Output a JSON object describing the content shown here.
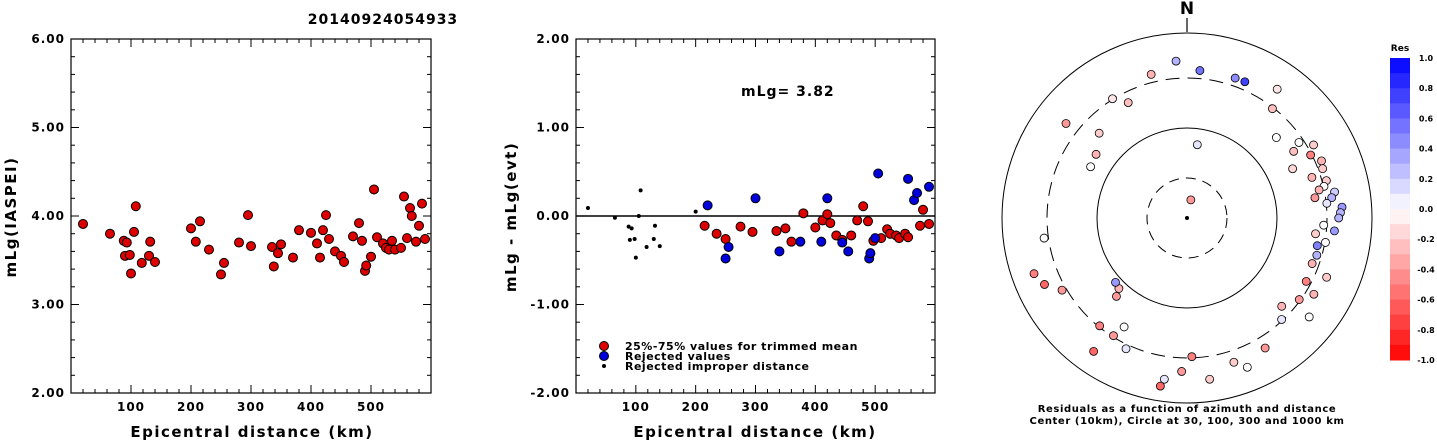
{
  "title": "20140924054933",
  "chart_data": [
    {
      "type": "scatter",
      "ylabel": "mLg(IASPEI)",
      "xlabel": "Epicentral distance (km)",
      "xlim": [
        0,
        600
      ],
      "ylim": [
        2.0,
        6.0
      ],
      "xticks": [
        "100",
        "200",
        "300",
        "400",
        "500"
      ],
      "yticks": [
        "2.00",
        "3.00",
        "4.00",
        "5.00",
        "6.00"
      ],
      "series": [
        {
          "color": "#dd0000",
          "points": [
            [
              20,
              3.91
            ],
            [
              65,
              3.8
            ],
            [
              88,
              3.72
            ],
            [
              90,
              3.55
            ],
            [
              93,
              3.7
            ],
            [
              98,
              3.56
            ],
            [
              100,
              3.35
            ],
            [
              105,
              3.82
            ],
            [
              108,
              4.11
            ],
            [
              118,
              3.47
            ],
            [
              130,
              3.55
            ],
            [
              132,
              3.71
            ],
            [
              140,
              3.48
            ],
            [
              200,
              3.86
            ],
            [
              208,
              3.71
            ],
            [
              215,
              3.94
            ],
            [
              230,
              3.62
            ],
            [
              250,
              3.34
            ],
            [
              255,
              3.47
            ],
            [
              280,
              3.7
            ],
            [
              295,
              4.01
            ],
            [
              300,
              3.66
            ],
            [
              335,
              3.65
            ],
            [
              338,
              3.43
            ],
            [
              345,
              3.58
            ],
            [
              350,
              3.68
            ],
            [
              370,
              3.53
            ],
            [
              380,
              3.84
            ],
            [
              400,
              3.81
            ],
            [
              410,
              3.69
            ],
            [
              415,
              3.53
            ],
            [
              420,
              3.84
            ],
            [
              425,
              4.01
            ],
            [
              430,
              3.74
            ],
            [
              440,
              3.6
            ],
            [
              450,
              3.55
            ],
            [
              455,
              3.48
            ],
            [
              470,
              3.77
            ],
            [
              480,
              3.92
            ],
            [
              485,
              3.72
            ],
            [
              490,
              3.38
            ],
            [
              492,
              3.44
            ],
            [
              500,
              3.54
            ],
            [
              505,
              4.3
            ],
            [
              510,
              3.76
            ],
            [
              520,
              3.69
            ],
            [
              525,
              3.64
            ],
            [
              530,
              3.62
            ],
            [
              535,
              3.72
            ],
            [
              540,
              3.62
            ],
            [
              550,
              3.64
            ],
            [
              555,
              4.22
            ],
            [
              560,
              3.75
            ],
            [
              565,
              4.09
            ],
            [
              568,
              4.0
            ],
            [
              575,
              3.71
            ],
            [
              580,
              3.89
            ],
            [
              585,
              4.14
            ],
            [
              590,
              3.74
            ]
          ]
        }
      ]
    },
    {
      "type": "scatter",
      "ylabel": "mLg - mLg(evt)",
      "xlabel": "Epicentral distance (km)",
      "annotation": "mLg= 3.82",
      "xlim": [
        0,
        600
      ],
      "ylim": [
        -2.0,
        2.0
      ],
      "xticks": [
        "100",
        "200",
        "300",
        "400",
        "500"
      ],
      "yticks": [
        "-2.00",
        "-1.00",
        "0.00",
        "1.00",
        "2.00"
      ],
      "reference_line": 0.0,
      "series": [
        {
          "name": "25%-75% values for trimmed mean",
          "color": "#dd0000",
          "marker": "circle",
          "points": [
            [
              215,
              -0.11
            ],
            [
              235,
              -0.2
            ],
            [
              250,
              -0.26
            ],
            [
              275,
              -0.12
            ],
            [
              295,
              -0.18
            ],
            [
              335,
              -0.17
            ],
            [
              350,
              -0.14
            ],
            [
              360,
              -0.29
            ],
            [
              380,
              0.03
            ],
            [
              400,
              -0.13
            ],
            [
              412,
              -0.05
            ],
            [
              420,
              0.02
            ],
            [
              425,
              -0.08
            ],
            [
              435,
              -0.22
            ],
            [
              445,
              -0.27
            ],
            [
              460,
              -0.22
            ],
            [
              470,
              -0.05
            ],
            [
              480,
              0.11
            ],
            [
              488,
              -0.06
            ],
            [
              497,
              -0.28
            ],
            [
              510,
              -0.25
            ],
            [
              520,
              -0.15
            ],
            [
              525,
              -0.2
            ],
            [
              535,
              -0.22
            ],
            [
              540,
              -0.25
            ],
            [
              550,
              -0.2
            ],
            [
              555,
              -0.24
            ],
            [
              575,
              -0.11
            ],
            [
              580,
              0.07
            ],
            [
              590,
              -0.09
            ]
          ]
        },
        {
          "name": "Rejected values",
          "color": "#0000dd",
          "marker": "circle",
          "points": [
            [
              220,
              0.12
            ],
            [
              250,
              -0.48
            ],
            [
              255,
              -0.35
            ],
            [
              300,
              0.2
            ],
            [
              340,
              -0.4
            ],
            [
              375,
              -0.29
            ],
            [
              410,
              -0.29
            ],
            [
              420,
              0.2
            ],
            [
              445,
              -0.3
            ],
            [
              455,
              -0.4
            ],
            [
              490,
              -0.48
            ],
            [
              492,
              -0.42
            ],
            [
              500,
              -0.25
            ],
            [
              505,
              0.48
            ],
            [
              555,
              0.42
            ],
            [
              565,
              0.18
            ],
            [
              570,
              0.26
            ],
            [
              590,
              0.33
            ]
          ]
        },
        {
          "name": "Rejected improper distance",
          "color": "#000000",
          "marker": "dot",
          "points": [
            [
              20,
              0.09
            ],
            [
              65,
              -0.02
            ],
            [
              88,
              -0.12
            ],
            [
              90,
              -0.27
            ],
            [
              93,
              -0.14
            ],
            [
              98,
              -0.26
            ],
            [
              100,
              -0.47
            ],
            [
              105,
              0.0
            ],
            [
              108,
              0.29
            ],
            [
              118,
              -0.35
            ],
            [
              130,
              -0.26
            ],
            [
              132,
              -0.11
            ],
            [
              140,
              -0.34
            ],
            [
              200,
              0.05
            ]
          ]
        }
      ]
    },
    {
      "type": "scatter",
      "subtype": "polar",
      "north_label": "N",
      "caption": [
        "Residuals as a function of azimuth and distance",
        "Center (10km), Circle at 30, 100, 300 and 1000 km"
      ],
      "colorbar": {
        "title": "Res",
        "labels": [
          "1.0",
          "0.8",
          "0.6",
          "0.4",
          "0.2",
          "0.0",
          "-0.2",
          "-0.4",
          "-0.6",
          "-0.8",
          "-1.0"
        ],
        "positive_color": "#0000ff",
        "negative_color": "#ff0000"
      },
      "points": [
        [
          5,
          0.8,
          0.55
        ],
        [
          8,
          0.4,
          0.1
        ],
        [
          12,
          0.1,
          -0.4
        ],
        [
          19,
          0.8,
          0.45
        ],
        [
          23,
          0.8,
          0.75
        ],
        [
          35,
          0.85,
          -0.1
        ],
        [
          38,
          0.75,
          -0.25
        ],
        [
          48,
          0.65,
          0.0
        ],
        [
          56,
          0.73,
          0.0
        ],
        [
          58,
          0.68,
          -0.25
        ],
        [
          60,
          0.79,
          -0.2
        ],
        [
          63,
          0.75,
          -0.5
        ],
        [
          65,
          0.63,
          -0.15
        ],
        [
          67,
          0.79,
          -0.3
        ],
        [
          70,
          0.78,
          -0.2
        ],
        [
          72,
          0.71,
          -0.3
        ],
        [
          75,
          0.78,
          -0.2
        ],
        [
          77,
          0.76,
          0.0
        ],
        [
          78,
          0.73,
          -0.3
        ],
        [
          80,
          0.81,
          0.2
        ],
        [
          81,
          0.7,
          -0.4
        ],
        [
          82,
          0.79,
          0.3
        ],
        [
          84,
          0.76,
          0.1
        ],
        [
          86,
          0.84,
          0.4
        ],
        [
          88,
          0.83,
          0.3
        ],
        [
          90,
          0.82,
          0.3
        ],
        [
          93,
          0.74,
          0.0
        ],
        [
          95,
          0.8,
          0.4
        ],
        [
          97,
          0.7,
          -0.2
        ],
        [
          100,
          0.76,
          0.0
        ],
        [
          102,
          0.72,
          0.5
        ],
        [
          106,
          0.73,
          0.3
        ],
        [
          110,
          0.72,
          -0.3
        ],
        [
          113,
          0.82,
          -0.2
        ],
        [
          118,
          0.73,
          -0.5
        ],
        [
          121,
          0.8,
          -0.3
        ],
        [
          126,
          0.75,
          -0.4
        ],
        [
          129,
          0.85,
          0.0
        ],
        [
          133,
          0.7,
          -0.3
        ],
        [
          137,
          0.75,
          0.1
        ],
        [
          149,
          0.82,
          -0.4
        ],
        [
          158,
          0.87,
          0.0
        ],
        [
          162,
          0.82,
          -0.2
        ],
        [
          172,
          0.88,
          -0.2
        ],
        [
          178,
          0.75,
          -0.5
        ],
        [
          182,
          0.83,
          -0.4
        ],
        [
          188,
          0.88,
          0.1
        ],
        [
          189,
          0.92,
          -0.6
        ],
        [
          205,
          0.78,
          0.1
        ],
        [
          210,
          0.68,
          0.0
        ],
        [
          212,
          0.75,
          -0.4
        ],
        [
          215,
          0.88,
          -0.6
        ],
        [
          219,
          0.75,
          -0.5
        ],
        [
          222,
          0.57,
          -0.4
        ],
        [
          224,
          0.53,
          -0.3
        ],
        [
          228,
          0.52,
          0.4
        ],
        [
          240,
          0.78,
          -0.4
        ],
        [
          245,
          0.85,
          -0.6
        ],
        [
          250,
          0.88,
          -0.5
        ],
        [
          262,
          0.78,
          0.0
        ],
        [
          298,
          0.59,
          0.0
        ],
        [
          305,
          0.6,
          -0.3
        ],
        [
          308,
          0.83,
          -0.4
        ],
        [
          314,
          0.66,
          -0.2
        ],
        [
          328,
          0.76,
          -0.1
        ],
        [
          333,
          0.7,
          -0.25
        ],
        [
          346,
          0.8,
          -0.3
        ],
        [
          356,
          0.85,
          0.3
        ]
      ]
    }
  ]
}
